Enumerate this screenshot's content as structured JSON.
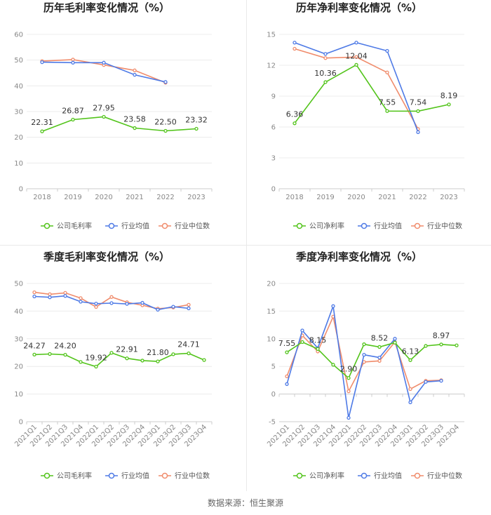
{
  "source": "数据来源：恒生聚源",
  "legend": {
    "company_gross": "公司毛利率",
    "company_net": "公司净利率",
    "industry_avg": "行业均值",
    "industry_median": "行业中位数"
  },
  "colors": {
    "company": "#52c41a",
    "industry_avg": "#4e7ae6",
    "industry_median": "#f08c6c"
  },
  "chart_data": [
    {
      "type": "line",
      "title": "历年毛利率变化情况（%）",
      "categories": [
        "2018",
        "2019",
        "2020",
        "2021",
        "2022",
        "2023"
      ],
      "ylim": [
        0,
        60
      ],
      "yticks": [
        0,
        10,
        20,
        30,
        40,
        50,
        60
      ],
      "series": [
        {
          "name": "公司毛利率",
          "values": [
            22.31,
            26.87,
            27.95,
            23.58,
            22.5,
            23.32
          ],
          "labels": [
            "22.31",
            "26.87",
            "27.95",
            "23.58",
            "22.50",
            "23.32"
          ]
        },
        {
          "name": "行业均值",
          "values": [
            49.2,
            49.0,
            49.0,
            44.3,
            41.5,
            null
          ]
        },
        {
          "name": "行业中位数",
          "values": [
            49.6,
            50.2,
            48.1,
            46.0,
            41.2,
            null
          ]
        }
      ]
    },
    {
      "type": "line",
      "title": "历年净利率变化情况（%）",
      "categories": [
        "2018",
        "2019",
        "2020",
        "2021",
        "2022",
        "2023"
      ],
      "ylim": [
        0,
        15
      ],
      "yticks": [
        0,
        3,
        6,
        9,
        12,
        15
      ],
      "series": [
        {
          "name": "公司净利率",
          "values": [
            6.36,
            10.36,
            12.04,
            7.55,
            7.54,
            8.19
          ],
          "labels": [
            "6.36",
            "10.36",
            "12.04",
            "7.55",
            "7.54",
            "8.19"
          ]
        },
        {
          "name": "行业均值",
          "values": [
            14.2,
            13.1,
            14.2,
            13.4,
            5.5,
            null
          ]
        },
        {
          "name": "行业中位数",
          "values": [
            13.6,
            12.7,
            12.8,
            11.3,
            5.8,
            null
          ]
        }
      ]
    },
    {
      "type": "line",
      "title": "季度毛利率变化情况（%）",
      "categories": [
        "2021Q1",
        "2021Q2",
        "2021Q3",
        "2021Q4",
        "2022Q1",
        "2022Q2",
        "2022Q3",
        "2022Q4",
        "2023Q1",
        "2023Q2",
        "2023Q3",
        "2023Q4"
      ],
      "ylim": [
        0,
        50
      ],
      "yticks": [
        0,
        10,
        20,
        30,
        40,
        50
      ],
      "series": [
        {
          "name": "公司毛利率",
          "values": [
            24.27,
            24.5,
            24.2,
            21.6,
            19.92,
            24.9,
            22.91,
            22.1,
            21.8,
            24.4,
            24.71,
            22.3
          ],
          "labels": [
            "24.27",
            "",
            "24.20",
            "",
            "19.92",
            "",
            "22.91",
            "",
            "21.80",
            "",
            "24.71",
            ""
          ]
        },
        {
          "name": "行业均值",
          "values": [
            45.3,
            45.0,
            45.5,
            43.4,
            42.7,
            42.9,
            42.6,
            43.0,
            40.5,
            41.6,
            41.0,
            null
          ]
        },
        {
          "name": "行业中位数",
          "values": [
            46.8,
            46.1,
            46.6,
            44.7,
            41.5,
            45.1,
            43.2,
            42.1,
            40.9,
            41.3,
            42.3,
            null
          ]
        }
      ]
    },
    {
      "type": "line",
      "title": "季度净利率变化情况（%）",
      "categories": [
        "2021Q1",
        "2021Q2",
        "2021Q3",
        "2021Q4",
        "2022Q1",
        "2022Q2",
        "2022Q3",
        "2022Q4",
        "2023Q1",
        "2023Q2",
        "2023Q3",
        "2023Q4"
      ],
      "ylim": [
        -5,
        20
      ],
      "yticks": [
        -5,
        0,
        5,
        10,
        15,
        20
      ],
      "series": [
        {
          "name": "公司净利率",
          "values": [
            7.55,
            9.4,
            8.15,
            5.3,
            2.9,
            9.0,
            8.52,
            9.3,
            6.13,
            8.7,
            8.97,
            8.8
          ],
          "labels": [
            "7.55",
            "",
            "8.15",
            "",
            "2.90",
            "",
            "8.52",
            "",
            "6.13",
            "",
            "8.97",
            ""
          ]
        },
        {
          "name": "行业均值",
          "values": [
            1.8,
            11.5,
            8.3,
            15.9,
            -4.3,
            7.1,
            6.6,
            10.0,
            -1.5,
            2.2,
            2.4,
            null
          ]
        },
        {
          "name": "行业中位数",
          "values": [
            3.2,
            10.6,
            7.7,
            14.0,
            0.5,
            5.8,
            6.0,
            9.4,
            0.9,
            2.4,
            2.5,
            null
          ]
        }
      ]
    }
  ]
}
